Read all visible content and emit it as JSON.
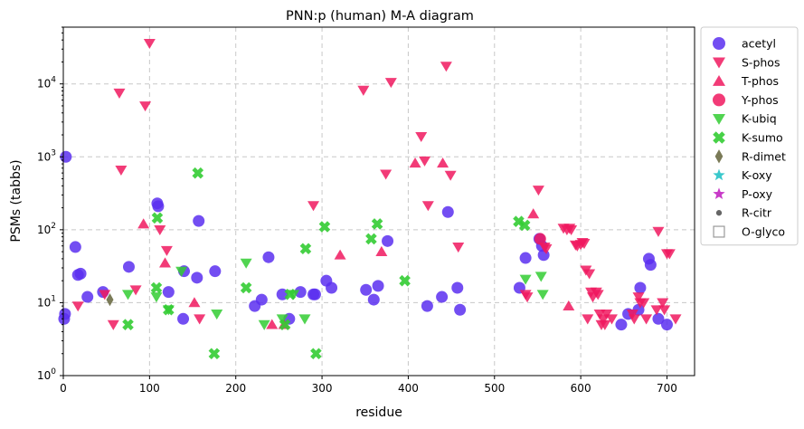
{
  "chart_data": {
    "type": "scatter",
    "title": "PNN:p (human) M-A diagram",
    "xlabel": "residue",
    "ylabel": "PSMs (tabbs)",
    "xlim": [
      0,
      732
    ],
    "ylim": [
      1,
      60000
    ],
    "yscale": "log",
    "grid": true,
    "legend_position": "right-outside",
    "x_ticks": [
      0,
      100,
      200,
      300,
      400,
      500,
      600,
      700
    ],
    "y_ticks": [
      {
        "value": 1,
        "base": "10",
        "exp": "0"
      },
      {
        "value": 10,
        "base": "10",
        "exp": "1"
      },
      {
        "value": 100,
        "base": "10",
        "exp": "2"
      },
      {
        "value": 1000,
        "base": "10",
        "exp": "3"
      },
      {
        "value": 10000,
        "base": "10",
        "exp": "4"
      }
    ],
    "series": [
      {
        "name": "acetyl",
        "marker": "circle",
        "color": "#5b2ff0",
        "points": [
          [
            1,
            6
          ],
          [
            2,
            7
          ],
          [
            3,
            1000
          ],
          [
            14,
            58
          ],
          [
            17,
            24
          ],
          [
            20,
            25
          ],
          [
            28,
            12
          ],
          [
            46,
            14
          ],
          [
            76,
            31
          ],
          [
            109,
            230
          ],
          [
            110,
            210
          ],
          [
            122,
            14
          ],
          [
            139,
            6
          ],
          [
            140,
            27
          ],
          [
            155,
            22
          ],
          [
            157,
            132
          ],
          [
            176,
            27
          ],
          [
            222,
            9
          ],
          [
            230,
            11
          ],
          [
            238,
            42
          ],
          [
            254,
            13
          ],
          [
            262,
            6
          ],
          [
            275,
            14
          ],
          [
            290,
            13
          ],
          [
            292,
            13
          ],
          [
            305,
            20
          ],
          [
            311,
            16
          ],
          [
            351,
            15
          ],
          [
            360,
            11
          ],
          [
            365,
            17
          ],
          [
            376,
            70
          ],
          [
            422,
            9
          ],
          [
            439,
            12
          ],
          [
            446,
            175
          ],
          [
            457,
            16
          ],
          [
            460,
            8
          ],
          [
            529,
            16
          ],
          [
            536,
            41
          ],
          [
            552,
            75
          ],
          [
            555,
            60
          ],
          [
            557,
            45
          ],
          [
            647,
            5
          ],
          [
            655,
            7
          ],
          [
            667,
            8
          ],
          [
            669,
            16
          ],
          [
            679,
            40
          ],
          [
            681,
            33
          ],
          [
            690,
            6
          ],
          [
            700,
            5
          ]
        ]
      },
      {
        "name": "S-phos",
        "marker": "triangle-down",
        "color": "#f0195f",
        "points": [
          [
            17,
            9
          ],
          [
            48,
            13
          ],
          [
            58,
            5
          ],
          [
            65,
            7500
          ],
          [
            67,
            660
          ],
          [
            84,
            15
          ],
          [
            95,
            5000
          ],
          [
            100,
            36000
          ],
          [
            112,
            100
          ],
          [
            120,
            52
          ],
          [
            158,
            6
          ],
          [
            290,
            215
          ],
          [
            348,
            8200
          ],
          [
            380,
            10500
          ],
          [
            374,
            580
          ],
          [
            415,
            1900
          ],
          [
            419,
            880
          ],
          [
            423,
            215
          ],
          [
            444,
            17500
          ],
          [
            449,
            560
          ],
          [
            458,
            58
          ],
          [
            536,
            13
          ],
          [
            538,
            12
          ],
          [
            551,
            350
          ],
          [
            558,
            58
          ],
          [
            560,
            55
          ],
          [
            580,
            105
          ],
          [
            584,
            100
          ],
          [
            587,
            105
          ],
          [
            589,
            100
          ],
          [
            594,
            62
          ],
          [
            596,
            60
          ],
          [
            600,
            63
          ],
          [
            602,
            67
          ],
          [
            604,
            65
          ],
          [
            606,
            28
          ],
          [
            608,
            6
          ],
          [
            610,
            25
          ],
          [
            612,
            14
          ],
          [
            614,
            12
          ],
          [
            618,
            14
          ],
          [
            620,
            13
          ],
          [
            622,
            7
          ],
          [
            624,
            5
          ],
          [
            626,
            6
          ],
          [
            628,
            5
          ],
          [
            630,
            7
          ],
          [
            636,
            6
          ],
          [
            660,
            7
          ],
          [
            662,
            6
          ],
          [
            667,
            12
          ],
          [
            669,
            10
          ],
          [
            673,
            10
          ],
          [
            676,
            6
          ],
          [
            688,
            8
          ],
          [
            690,
            95
          ],
          [
            695,
            10
          ],
          [
            697,
            8
          ],
          [
            700,
            47
          ],
          [
            703,
            47
          ],
          [
            710,
            6
          ]
        ]
      },
      {
        "name": "T-phos",
        "marker": "triangle-up",
        "color": "#f0195f",
        "points": [
          [
            93,
            120
          ],
          [
            118,
            35
          ],
          [
            152,
            10
          ],
          [
            242,
            5
          ],
          [
            256,
            5
          ],
          [
            321,
            45
          ],
          [
            369,
            50
          ],
          [
            408,
            820
          ],
          [
            440,
            820
          ],
          [
            545,
            165
          ],
          [
            586,
            9
          ]
        ]
      },
      {
        "name": "Y-phos",
        "marker": "circle",
        "color": "#f0195f",
        "points": [
          [
            553,
            75
          ]
        ]
      },
      {
        "name": "K-ubiq",
        "marker": "triangle-down",
        "color": "#33cc33",
        "points": [
          [
            75,
            13
          ],
          [
            108,
            12
          ],
          [
            122,
            8
          ],
          [
            137,
            27
          ],
          [
            178,
            7
          ],
          [
            212,
            35
          ],
          [
            233,
            5
          ],
          [
            254,
            6
          ],
          [
            267,
            13
          ],
          [
            280,
            6
          ],
          [
            536,
            21
          ],
          [
            554,
            23
          ],
          [
            556,
            13
          ]
        ]
      },
      {
        "name": "K-sumo",
        "marker": "x",
        "color": "#33cc33",
        "points": [
          [
            75,
            5
          ],
          [
            108,
            16
          ],
          [
            109,
            145
          ],
          [
            122,
            8
          ],
          [
            156,
            600
          ],
          [
            175,
            2
          ],
          [
            212,
            16
          ],
          [
            257,
            5
          ],
          [
            263,
            13
          ],
          [
            281,
            55
          ],
          [
            293,
            2
          ],
          [
            303,
            110
          ],
          [
            357,
            75
          ],
          [
            364,
            120
          ],
          [
            396,
            20
          ],
          [
            528,
            130
          ],
          [
            535,
            115
          ]
        ]
      },
      {
        "name": "R-dimet",
        "marker": "diamond",
        "color": "#6b6b45",
        "points": [
          [
            54,
            11
          ]
        ]
      },
      {
        "name": "K-oxy",
        "marker": "star",
        "color": "#3ac8cc",
        "points": []
      },
      {
        "name": "P-oxy",
        "marker": "star",
        "color": "#c83ac8",
        "points": []
      },
      {
        "name": "R-citr",
        "marker": "small-circle",
        "color": "#666666",
        "points": []
      },
      {
        "name": "O-glyco",
        "marker": "square-open",
        "color": "#999999",
        "points": []
      }
    ]
  }
}
